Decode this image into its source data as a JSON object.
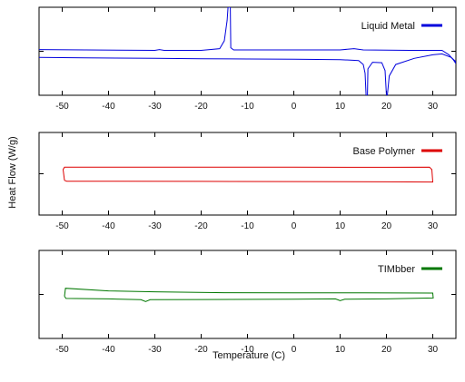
{
  "chart_data": {
    "type": "line",
    "ylabel": "Heat Flow (W/g)",
    "xlabel": "Temperature (C)",
    "xlim": [
      -55,
      35
    ],
    "xticks": [
      -50,
      -40,
      -30,
      -20,
      -10,
      0,
      10,
      20,
      30
    ],
    "xtick_labels": [
      "-50",
      "-40",
      "-30",
      "-20",
      "-10",
      "0",
      "10",
      "20",
      "30"
    ],
    "grid": false,
    "legend_position": "top-right",
    "panels": [
      {
        "series": [
          {
            "name": "Liquid Metal",
            "color": "#0000dd",
            "ylim": [
              0,
              10
            ],
            "points": [
              [
                -55,
                5.2
              ],
              [
                -45,
                5.15
              ],
              [
                -30,
                5.1
              ],
              [
                -29,
                5.2
              ],
              [
                -28,
                5.1
              ],
              [
                -20,
                5.1
              ],
              [
                -16,
                5.3
              ],
              [
                -15,
                6.2
              ],
              [
                -14.4,
                8.5
              ],
              [
                -14.2,
                10
              ],
              [
                -13.7,
                10
              ],
              [
                -13.6,
                5.4
              ],
              [
                -13,
                5.15
              ],
              [
                0,
                5.15
              ],
              [
                10,
                5.15
              ],
              [
                13,
                5.3
              ],
              [
                15,
                5.15
              ],
              [
                25,
                5.1
              ],
              [
                32,
                5.1
              ],
              [
                33.5,
                4.6
              ],
              [
                34.5,
                4.0
              ],
              [
                35,
                3.6
              ]
            ]
          },
          {
            "name": "",
            "color": "#0000dd",
            "ylim": [
              0,
              10
            ],
            "points": [
              [
                -55,
                4.3
              ],
              [
                -45,
                4.25
              ],
              [
                -30,
                4.2
              ],
              [
                -20,
                4.15
              ],
              [
                -10,
                4.12
              ],
              [
                0,
                4.1
              ],
              [
                10,
                4.05
              ],
              [
                14,
                3.95
              ],
              [
                15,
                3.5
              ],
              [
                15.4,
                2.5
              ],
              [
                15.6,
                0
              ],
              [
                15.9,
                0
              ],
              [
                16,
                3.0
              ],
              [
                17,
                3.75
              ],
              [
                19,
                3.7
              ],
              [
                19.7,
                2.8
              ],
              [
                20,
                0
              ],
              [
                20.2,
                0
              ],
              [
                20.6,
                2.2
              ],
              [
                22,
                3.5
              ],
              [
                26,
                4.2
              ],
              [
                30,
                4.6
              ],
              [
                32,
                4.7
              ],
              [
                34,
                4.3
              ],
              [
                35,
                3.8
              ]
            ]
          }
        ]
      },
      {
        "series": [
          {
            "name": "Base Polymer",
            "color": "#dd0000",
            "ylim": [
              0,
              10
            ],
            "points": [
              [
                -49.5,
                4.2
              ],
              [
                -49.8,
                5.5
              ],
              [
                -49.5,
                5.8
              ],
              [
                -40,
                5.8
              ],
              [
                -20,
                5.8
              ],
              [
                0,
                5.8
              ],
              [
                20,
                5.78
              ],
              [
                29.3,
                5.8
              ],
              [
                29.8,
                5.5
              ],
              [
                30,
                4.0
              ],
              [
                20,
                4.02
              ],
              [
                0,
                4.05
              ],
              [
                -20,
                4.08
              ],
              [
                -40,
                4.1
              ],
              [
                -49,
                4.1
              ],
              [
                -49.5,
                4.2
              ]
            ]
          }
        ]
      },
      {
        "series": [
          {
            "name": "TIMbber",
            "color": "#007700",
            "ylim": [
              0,
              10
            ],
            "points": [
              [
                -49.5,
                4.8
              ],
              [
                -49.3,
                5.7
              ],
              [
                -40,
                5.4
              ],
              [
                -30,
                5.3
              ],
              [
                -15,
                5.2
              ],
              [
                0,
                5.18
              ],
              [
                15,
                5.18
              ],
              [
                30,
                5.15
              ],
              [
                30.1,
                4.6
              ],
              [
                20,
                4.5
              ],
              [
                11,
                4.45
              ],
              [
                10,
                4.3
              ],
              [
                9,
                4.5
              ],
              [
                0,
                4.45
              ],
              [
                -20,
                4.42
              ],
              [
                -31,
                4.4
              ],
              [
                -32,
                4.2
              ],
              [
                -33,
                4.4
              ],
              [
                -40,
                4.5
              ],
              [
                -49.2,
                4.55
              ],
              [
                -49.5,
                4.8
              ]
            ]
          }
        ]
      }
    ]
  }
}
